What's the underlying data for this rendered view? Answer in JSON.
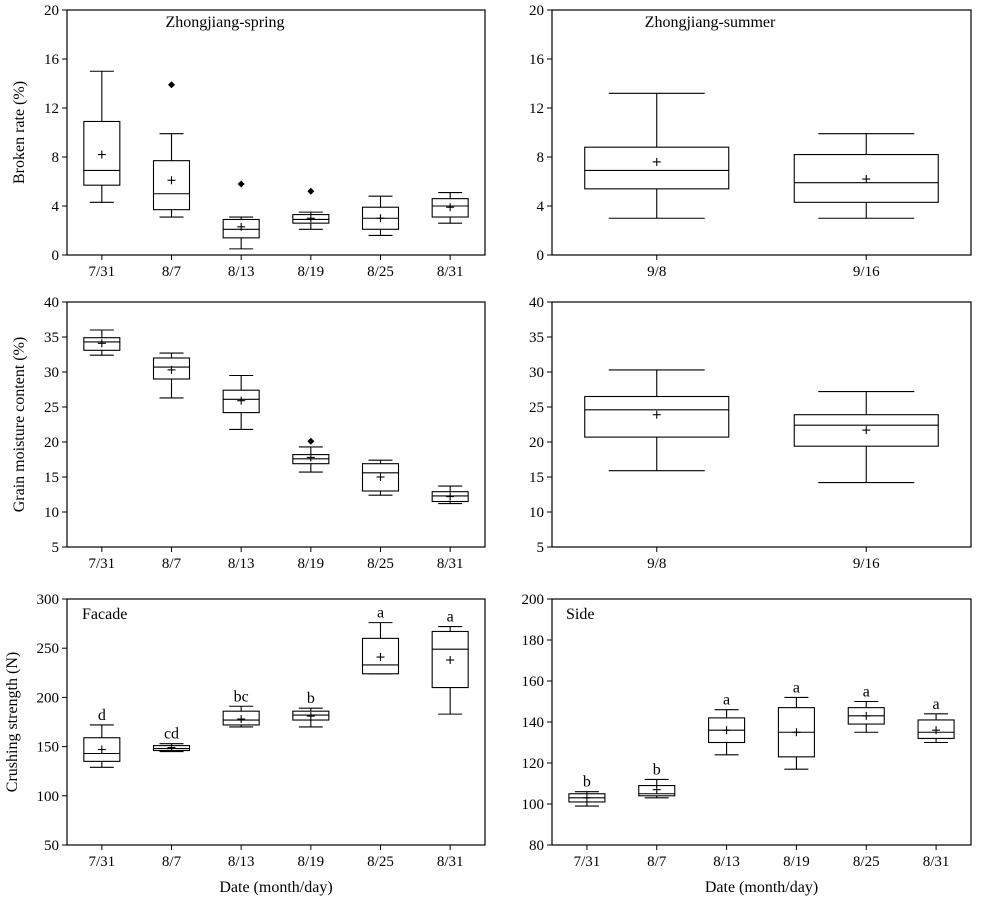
{
  "chart_data": [
    {
      "type": "box",
      "title": "Zhongjiang-spring",
      "ylabel": "Broken rate (%)",
      "xlabel": "",
      "ylim": [
        0,
        20
      ],
      "yticks": [
        0,
        4,
        8,
        12,
        16,
        20
      ],
      "categories": [
        "7/31",
        "8/7",
        "8/13",
        "8/19",
        "8/25",
        "8/31"
      ],
      "boxes": [
        {
          "min": 4.3,
          "q1": 5.7,
          "median": 6.9,
          "q3": 10.9,
          "max": 15.0,
          "mean": 8.2,
          "outliers": []
        },
        {
          "min": 3.1,
          "q1": 3.7,
          "median": 5.0,
          "q3": 7.7,
          "max": 9.9,
          "mean": 6.1,
          "outliers": [
            13.9
          ]
        },
        {
          "min": 0.5,
          "q1": 1.4,
          "median": 2.1,
          "q3": 2.9,
          "max": 3.1,
          "mean": 2.3,
          "outliers": [
            5.8
          ]
        },
        {
          "min": 2.1,
          "q1": 2.6,
          "median": 2.9,
          "q3": 3.3,
          "max": 3.5,
          "mean": 3.0,
          "outliers": [
            5.2
          ]
        },
        {
          "min": 1.6,
          "q1": 2.1,
          "median": 3.0,
          "q3": 3.9,
          "max": 4.8,
          "mean": 3.0,
          "outliers": []
        },
        {
          "min": 2.6,
          "q1": 3.1,
          "median": 4.0,
          "q3": 4.6,
          "max": 5.1,
          "mean": 3.9,
          "outliers": []
        }
      ],
      "letters": []
    },
    {
      "type": "box",
      "title": "Zhongjiang-summer",
      "ylabel": "",
      "xlabel": "",
      "ylim": [
        0,
        20
      ],
      "yticks": [
        0,
        4,
        8,
        12,
        16,
        20
      ],
      "categories": [
        "9/8",
        "9/16"
      ],
      "boxes": [
        {
          "min": 3.0,
          "q1": 5.4,
          "median": 6.9,
          "q3": 8.8,
          "max": 13.2,
          "mean": 7.6,
          "outliers": []
        },
        {
          "min": 3.0,
          "q1": 4.3,
          "median": 5.9,
          "q3": 8.2,
          "max": 9.9,
          "mean": 6.2,
          "outliers": []
        }
      ],
      "letters": []
    },
    {
      "type": "box",
      "title": "",
      "ylabel": "Grain moisture content (%)",
      "xlabel": "",
      "ylim": [
        5,
        40
      ],
      "yticks": [
        5,
        10,
        15,
        20,
        25,
        30,
        35,
        40
      ],
      "categories": [
        "7/31",
        "8/7",
        "8/13",
        "8/19",
        "8/25",
        "8/31"
      ],
      "boxes": [
        {
          "min": 32.4,
          "q1": 33.1,
          "median": 34.3,
          "q3": 34.9,
          "max": 36.0,
          "mean": 34.1,
          "outliers": []
        },
        {
          "min": 26.3,
          "q1": 29.0,
          "median": 30.7,
          "q3": 32.0,
          "max": 32.7,
          "mean": 30.3,
          "outliers": []
        },
        {
          "min": 21.8,
          "q1": 24.2,
          "median": 26.1,
          "q3": 27.4,
          "max": 29.5,
          "mean": 25.9,
          "outliers": []
        },
        {
          "min": 15.7,
          "q1": 16.9,
          "median": 17.6,
          "q3": 18.2,
          "max": 19.3,
          "mean": 17.8,
          "outliers": [
            20.1
          ]
        },
        {
          "min": 12.4,
          "q1": 13.0,
          "median": 15.6,
          "q3": 16.9,
          "max": 17.4,
          "mean": 15.0,
          "outliers": []
        },
        {
          "min": 11.2,
          "q1": 11.5,
          "median": 12.3,
          "q3": 12.9,
          "max": 13.7,
          "mean": 12.2,
          "outliers": []
        }
      ],
      "letters": []
    },
    {
      "type": "box",
      "title": "",
      "ylabel": "",
      "xlabel": "",
      "ylim": [
        5,
        40
      ],
      "yticks": [
        5,
        10,
        15,
        20,
        25,
        30,
        35,
        40
      ],
      "categories": [
        "9/8",
        "9/16"
      ],
      "boxes": [
        {
          "min": 15.9,
          "q1": 20.7,
          "median": 24.6,
          "q3": 26.5,
          "max": 30.3,
          "mean": 23.9,
          "outliers": []
        },
        {
          "min": 14.2,
          "q1": 19.4,
          "median": 22.4,
          "q3": 23.9,
          "max": 27.2,
          "mean": 21.7,
          "outliers": []
        }
      ],
      "letters": []
    },
    {
      "type": "box",
      "title": "Facade",
      "ylabel": "Crushing strength (N)",
      "xlabel": "Date (month/day)",
      "ylim": [
        50,
        300
      ],
      "yticks": [
        50,
        100,
        150,
        200,
        250,
        300
      ],
      "categories": [
        "7/31",
        "8/7",
        "8/13",
        "8/19",
        "8/25",
        "8/31"
      ],
      "boxes": [
        {
          "min": 129,
          "q1": 135,
          "median": 143,
          "q3": 159,
          "max": 172,
          "mean": 147,
          "outliers": []
        },
        {
          "min": 145,
          "q1": 146,
          "median": 148,
          "q3": 151,
          "max": 153,
          "mean": 149,
          "outliers": []
        },
        {
          "min": 170,
          "q1": 172,
          "median": 177,
          "q3": 186,
          "max": 191,
          "mean": 178,
          "outliers": []
        },
        {
          "min": 170,
          "q1": 177,
          "median": 182,
          "q3": 186,
          "max": 189,
          "mean": 181,
          "outliers": []
        },
        {
          "min": 224,
          "q1": 224,
          "median": 233,
          "q3": 260,
          "max": 276,
          "mean": 241,
          "outliers": []
        },
        {
          "min": 183,
          "q1": 210,
          "median": 249,
          "q3": 267,
          "max": 272,
          "mean": 238,
          "outliers": []
        }
      ],
      "letters": [
        "d",
        "cd",
        "bc",
        "b",
        "a",
        "a"
      ]
    },
    {
      "type": "box",
      "title": "Side",
      "ylabel": "",
      "xlabel": "Date (month/day)",
      "ylim": [
        80,
        200
      ],
      "yticks": [
        80,
        100,
        120,
        140,
        160,
        180,
        200
      ],
      "categories": [
        "7/31",
        "8/7",
        "8/13",
        "8/19",
        "8/25",
        "8/31"
      ],
      "boxes": [
        {
          "min": 99,
          "q1": 101,
          "median": 103,
          "q3": 105,
          "max": 106,
          "mean": 103,
          "outliers": []
        },
        {
          "min": 103,
          "q1": 104,
          "median": 105,
          "q3": 109,
          "max": 112,
          "mean": 107,
          "outliers": []
        },
        {
          "min": 124,
          "q1": 130,
          "median": 136,
          "q3": 142,
          "max": 146,
          "mean": 136,
          "outliers": []
        },
        {
          "min": 117,
          "q1": 123,
          "median": 135,
          "q3": 147,
          "max": 152,
          "mean": 135,
          "outliers": []
        },
        {
          "min": 135,
          "q1": 139,
          "median": 143,
          "q3": 147,
          "max": 150,
          "mean": 143,
          "outliers": []
        },
        {
          "min": 130,
          "q1": 132,
          "median": 135,
          "q3": 141,
          "max": 144,
          "mean": 136,
          "outliers": []
        }
      ],
      "letters": [
        "b",
        "b",
        "a",
        "a",
        "a",
        "a"
      ]
    }
  ]
}
